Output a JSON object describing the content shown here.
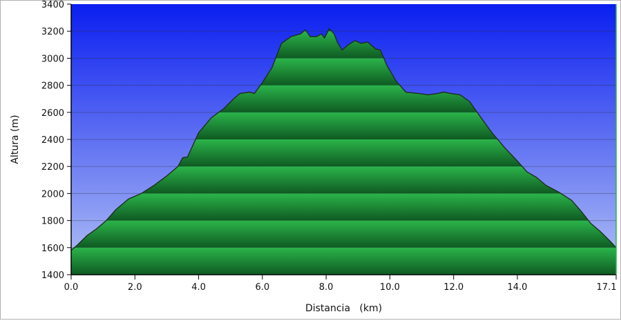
{
  "chart_data": {
    "type": "area",
    "xlabel": "Distancia   (km)",
    "ylabel": "Altura (m)",
    "xlim": [
      0,
      17.1
    ],
    "ylim": [
      1400,
      3400
    ],
    "xticks": [
      0,
      2,
      4,
      6,
      8,
      10,
      12,
      14,
      17.1
    ],
    "xtick_labels": [
      "0.0",
      "2.0",
      "4.0",
      "6.0",
      "8.0",
      "10.0",
      "12.0",
      "14.0",
      "17.1"
    ],
    "yticks": [
      1400,
      1600,
      1800,
      2000,
      2200,
      2400,
      2600,
      2800,
      3000,
      3200,
      3400
    ],
    "ytick_labels": [
      "1400",
      "1600",
      "1800",
      "2000",
      "2200",
      "2400",
      "2600",
      "2800",
      "3000",
      "3200",
      "3400"
    ],
    "grid": true,
    "colors": {
      "sky_top": "#0a1ef0",
      "sky_bottom": "#b4c3f5",
      "fill_light": "#2bb44a",
      "fill_dark": "#0f5a22",
      "outline": "#1e2d1e",
      "grid": "#2a2a2a"
    },
    "series": [
      {
        "x": [
          0,
          0.2,
          0.5,
          0.8,
          1.1,
          1.4,
          1.8,
          2.2,
          2.6,
          3.0,
          3.35,
          3.5,
          3.65,
          4.0,
          4.4,
          4.8,
          5.1,
          5.3,
          5.6,
          5.75,
          6.0,
          6.3,
          6.6,
          6.9,
          7.2,
          7.35,
          7.5,
          7.7,
          7.85,
          7.95,
          8.1,
          8.25,
          8.35,
          8.5,
          8.7,
          8.9,
          9.1,
          9.3,
          9.55,
          9.7,
          9.9,
          10.2,
          10.5,
          10.9,
          11.2,
          11.5,
          11.7,
          11.9,
          12.2,
          12.5,
          12.8,
          13.2,
          13.6,
          14.0,
          14.3,
          14.6,
          14.9,
          15.3,
          15.7,
          16.0,
          16.3,
          16.6,
          16.9,
          17.1
        ],
        "y": [
          1580,
          1620,
          1690,
          1740,
          1800,
          1880,
          1960,
          2000,
          2060,
          2130,
          2200,
          2265,
          2270,
          2450,
          2560,
          2630,
          2700,
          2740,
          2750,
          2740,
          2820,
          2930,
          3110,
          3160,
          3180,
          3210,
          3160,
          3160,
          3180,
          3150,
          3220,
          3180,
          3120,
          3060,
          3100,
          3130,
          3110,
          3120,
          3070,
          3060,
          2950,
          2830,
          2750,
          2740,
          2730,
          2740,
          2750,
          2740,
          2730,
          2680,
          2580,
          2450,
          2340,
          2240,
          2160,
          2120,
          2060,
          2010,
          1950,
          1870,
          1780,
          1720,
          1650,
          1600
        ]
      }
    ]
  }
}
